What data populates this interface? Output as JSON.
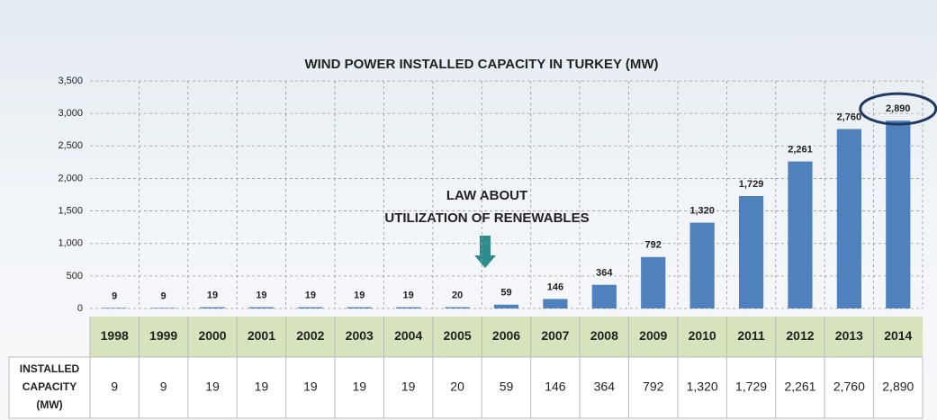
{
  "chart_data": {
    "type": "bar",
    "title": "WIND POWER INSTALLED CAPACITY IN TURKEY (MW)",
    "annotation": [
      "LAW ABOUT",
      "UTILIZATION OF RENEWABLES"
    ],
    "row_label": [
      "INSTALLED",
      "CAPACITY",
      "(MW)"
    ],
    "categories": [
      "1998",
      "1999",
      "2000",
      "2001",
      "2002",
      "2003",
      "2004",
      "2005",
      "2006",
      "2007",
      "2008",
      "2009",
      "2010",
      "2011",
      "2012",
      "2013",
      "2014"
    ],
    "values": [
      9,
      9,
      19,
      19,
      19,
      19,
      19,
      20,
      59,
      146,
      364,
      792,
      1320,
      1729,
      2261,
      2760,
      2890
    ],
    "value_labels": [
      "9",
      "9",
      "19",
      "19",
      "19",
      "19",
      "19",
      "20",
      "59",
      "146",
      "364",
      "792",
      "1,320",
      "1,729",
      "2,261",
      "2,760",
      "2,890"
    ],
    "color": "#4f81bd",
    "ylim": [
      0,
      3500
    ],
    "yticks": [
      0,
      500,
      {
        "value": 1000,
        "label": "1,000"
      },
      {
        "value": 1500,
        "label": "1,500"
      },
      {
        "value": 2000,
        "label": "2,000"
      },
      {
        "value": 2500,
        "label": "2,500"
      },
      {
        "value": 3000,
        "label": "3,000"
      },
      {
        "value": 3500,
        "label": "3,500"
      }
    ],
    "grid": true
  }
}
